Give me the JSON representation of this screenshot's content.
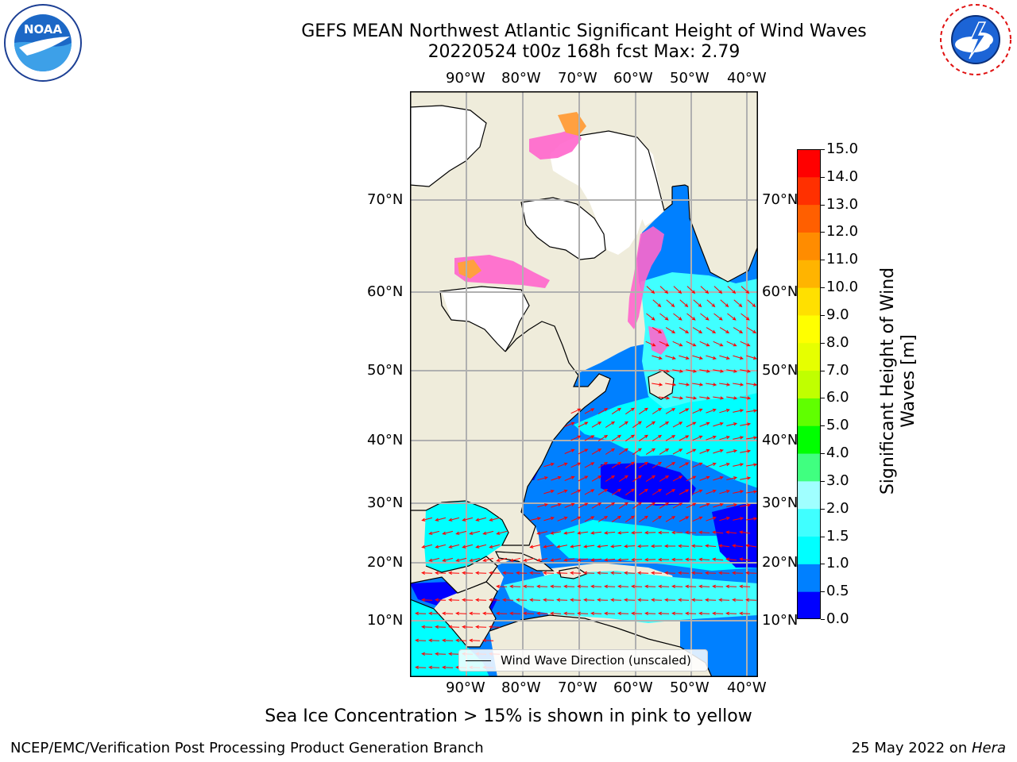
{
  "title": "GEFS MEAN Northwest Atlantic Significant Height of Wind Waves",
  "subtitle": "20220524 t00z 168h fcst   Max: 2.79",
  "map": {
    "lon_labels": [
      "90°W",
      "80°W",
      "70°W",
      "60°W",
      "50°W",
      "40°W"
    ],
    "lat_labels": [
      "70°N",
      "60°N",
      "50°N",
      "40°N",
      "30°N",
      "20°N",
      "10°N"
    ],
    "legend_label": "Wind Wave Direction (unscaled)",
    "colors": {
      "land": "#efecdb",
      "ice_free_land": "#ffffff",
      "arrows": "#ff0000",
      "coastline": "#000000",
      "gridlines": "#b0b0b0"
    }
  },
  "colorbar": {
    "label": "Significant Height of Wind Waves [m]",
    "ticks": [
      "0.0",
      "0.5",
      "1.0",
      "1.5",
      "2.0",
      "3.0",
      "4.0",
      "5.0",
      "6.0",
      "7.0",
      "8.0",
      "9.0",
      "10.0",
      "11.0",
      "12.0",
      "13.0",
      "14.0",
      "15.0"
    ],
    "colors": [
      "#0000ff",
      "#0080ff",
      "#00ffff",
      "#40ffff",
      "#a0ffff",
      "#40ff80",
      "#00ff00",
      "#60ff00",
      "#c0ff00",
      "#e6ff00",
      "#ffff00",
      "#ffe000",
      "#ffb400",
      "#ff8c00",
      "#ff5f00",
      "#ff3000",
      "#ff0000"
    ]
  },
  "logos": {
    "noaa": "NOAA",
    "noaa_ring": "NATIONAL OCEANIC AND ATMOSPHERIC ADMINISTRATION · U.S. DEPARTMENT OF COMMERCE",
    "nws_ring": "NATIONAL WEATHER SERVICE"
  },
  "caption": "Sea Ice Concentration > 15% is shown in pink to yellow",
  "footer": {
    "left": "NCEP/EMC/Verification Post Processing Product Generation Branch",
    "date": "25 May 2022 on ",
    "machine": "Hera"
  }
}
